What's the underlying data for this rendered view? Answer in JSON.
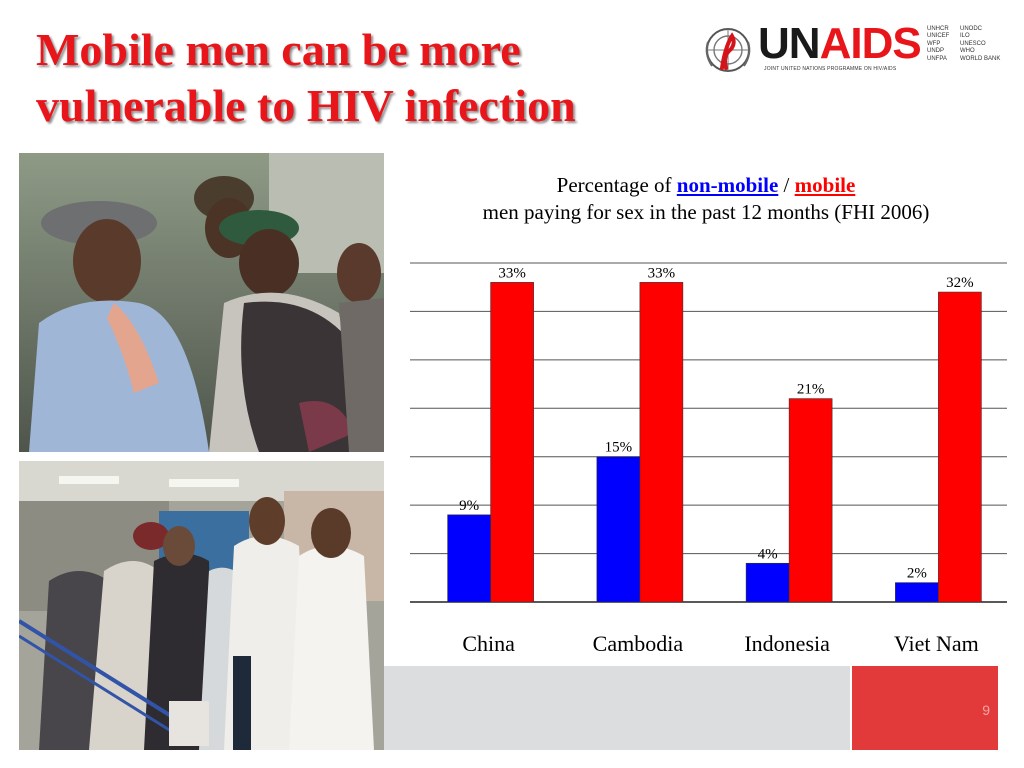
{
  "title": {
    "line1": "Mobile men can be more",
    "line2": "vulnerable to HIV infection"
  },
  "logo": {
    "word_un": "UN",
    "word_aids": "AIDS",
    "tagline": "JOINT UNITED NATIONS PROGRAMME ON HIV/AIDS",
    "cosponsors_col1": [
      "UNHCR",
      "UNICEF",
      "WFP",
      "UNDP",
      "UNFPA"
    ],
    "cosponsors_col2": [
      "UNODC",
      "ILO",
      "UNESCO",
      "WHO",
      "WORLD BANK"
    ]
  },
  "caption": {
    "prefix": "Percentage of",
    "nonmobile": "non-mobile",
    "separator": "/",
    "mobile": "mobile",
    "line2": "men paying for sex in the past 12 months (FHI 2006)"
  },
  "colors": {
    "title": "#e8161b",
    "nonmobile": "#0000ff",
    "mobile": "#ff0000"
  },
  "chart_data": {
    "type": "bar",
    "categories": [
      "China",
      "Cambodia",
      "Indonesia",
      "Viet Nam"
    ],
    "series": [
      {
        "name": "non-mobile",
        "color": "#0000ff",
        "values": [
          9,
          15,
          4,
          2
        ],
        "labels": [
          "9%",
          "15%",
          "4%",
          "2%"
        ]
      },
      {
        "name": "mobile",
        "color": "#ff0000",
        "values": [
          33,
          33,
          21,
          32
        ],
        "labels": [
          "33%",
          "33%",
          "21%",
          "32%"
        ]
      }
    ],
    "ylim": [
      0,
      35
    ],
    "grid": true,
    "legend": "caption"
  },
  "page_number": "9"
}
